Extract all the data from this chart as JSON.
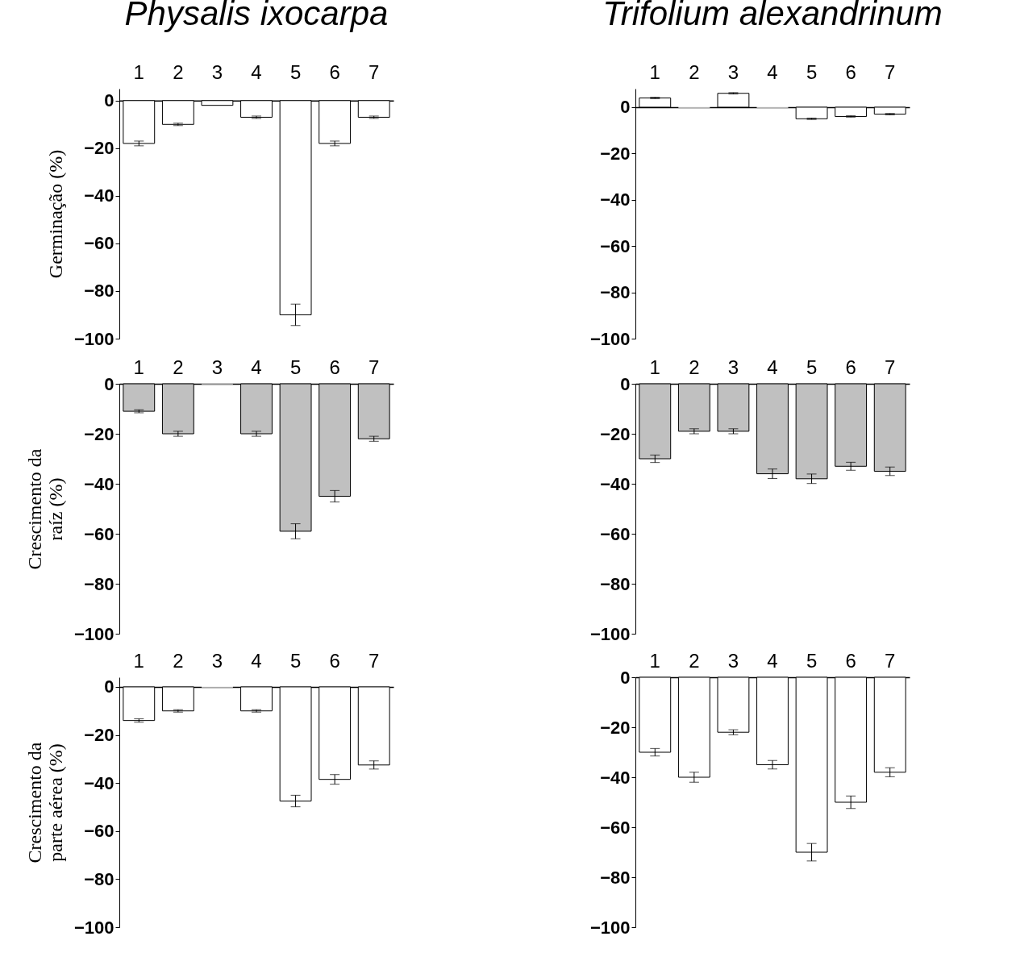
{
  "chart_data": [
    {
      "type": "bar",
      "title": "Physalis ixocarpa",
      "ylabel": "Germinação (%)",
      "categories": [
        "1",
        "2",
        "3",
        "4",
        "5",
        "6",
        "7"
      ],
      "values": [
        -18,
        -10,
        -2,
        -7,
        -90,
        -18,
        -7
      ],
      "errors": [
        1,
        0.5,
        null,
        0.5,
        4.5,
        1,
        0.5
      ],
      "color": "#ffffff",
      "ylim": [
        -100,
        5
      ],
      "yticks": [
        -100,
        -80,
        -60,
        -40,
        -20,
        0
      ]
    },
    {
      "type": "bar",
      "title": "Trifolium alexandrinum",
      "categories": [
        "1",
        "2",
        "3",
        "4",
        "5",
        "6",
        "7"
      ],
      "values": [
        4,
        0,
        6,
        0,
        -5,
        -4,
        -3
      ],
      "errors": [
        0.3,
        null,
        0.3,
        null,
        0.3,
        0.3,
        0.3
      ],
      "color": "#ffffff",
      "ylim": [
        -100,
        8
      ],
      "yticks": [
        -100,
        -80,
        -60,
        -40,
        -20,
        0
      ]
    },
    {
      "type": "bar",
      "ylabel": "Crescimento da\nraíz (%)",
      "categories": [
        "1",
        "2",
        "3",
        "4",
        "5",
        "6",
        "7"
      ],
      "values": [
        -11,
        -20,
        0,
        -20,
        -59,
        -45,
        -22
      ],
      "errors": [
        0.6,
        1,
        null,
        1,
        3,
        2.3,
        1
      ],
      "color": "#c0c0c0",
      "ylim": [
        -100,
        0
      ],
      "yticks": [
        -100,
        -80,
        -60,
        -40,
        -20,
        0
      ]
    },
    {
      "type": "bar",
      "categories": [
        "1",
        "2",
        "3",
        "4",
        "5",
        "6",
        "7"
      ],
      "values": [
        -30,
        -19,
        -19,
        -36,
        -38,
        -33,
        -35
      ],
      "errors": [
        1.5,
        1,
        1,
        1.9,
        1.9,
        1.6,
        1.7
      ],
      "color": "#c0c0c0",
      "ylim": [
        -100,
        0
      ],
      "yticks": [
        -100,
        -80,
        -60,
        -40,
        -20,
        0
      ]
    },
    {
      "type": "bar",
      "ylabel": "Crescimento da\nparte aérea (%)",
      "categories": [
        "1",
        "2",
        "3",
        "4",
        "5",
        "6",
        "7"
      ],
      "values": [
        -14,
        -10,
        0,
        -10,
        -47.5,
        -38.5,
        -32.5
      ],
      "errors": [
        0.7,
        0.5,
        null,
        0.5,
        2.4,
        2,
        1.7
      ],
      "color": "#ffffff",
      "ylim": [
        -100,
        4
      ],
      "yticks": [
        -100,
        -80,
        -60,
        -40,
        -20,
        0
      ]
    },
    {
      "type": "bar",
      "categories": [
        "1",
        "2",
        "3",
        "4",
        "5",
        "6",
        "7"
      ],
      "values": [
        -30,
        -40,
        -22,
        -35,
        -70,
        -50,
        -38
      ],
      "errors": [
        1.5,
        2,
        1,
        1.7,
        3.5,
        2.5,
        1.8
      ],
      "color": "#ffffff",
      "ylim": [
        -100,
        0
      ],
      "yticks": [
        -100,
        -80,
        -60,
        -40,
        -20,
        0
      ]
    }
  ]
}
